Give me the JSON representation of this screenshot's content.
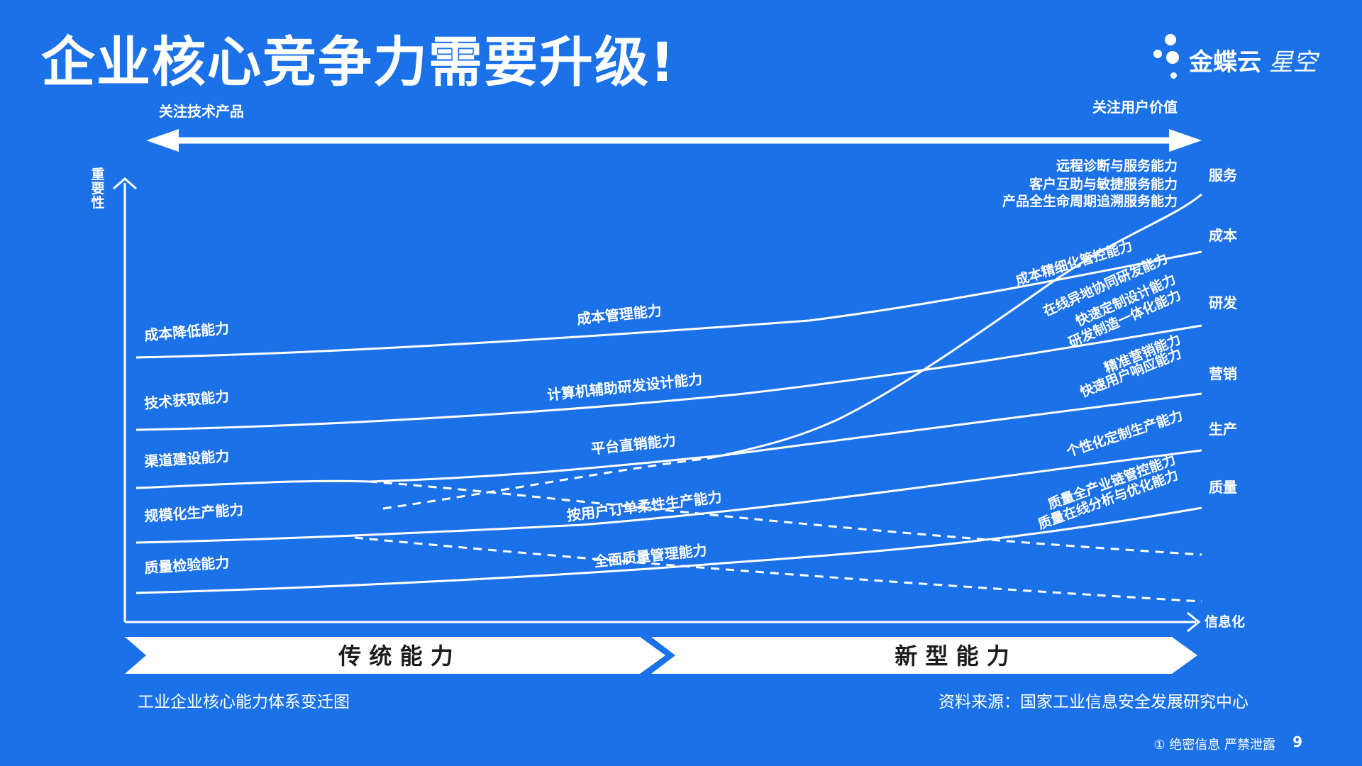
{
  "title": "企业核心竞争力需要升级!",
  "logo": {
    "brand": "金蝶云",
    "product": "星空"
  },
  "top_arrow": {
    "left_label": "关注技术产品",
    "right_label": "关注用户价值"
  },
  "axes": {
    "y_label": [
      "重",
      "要",
      "性"
    ],
    "x_label": "信息化"
  },
  "traditional_labels": [
    "成本降低能力",
    "技术获取能力",
    "渠道建设能力",
    "规模化生产能力",
    "质量检验能力"
  ],
  "middle_labels": [
    "成本管理能力",
    "计算机辅助研发设计能力",
    "平台直销能力",
    "按用户订单柔性生产能力",
    "全面质量管理能力"
  ],
  "new_labels": {
    "service": [
      "远程诊断与服务能力",
      "客户互助与敏捷服务能力",
      "产品全生命周期追溯服务能力"
    ],
    "cost": "成本精细化管控能力",
    "rnd": [
      "在线异地协同研发能力",
      "快速定制设计能力",
      "研发制造一体化能力"
    ],
    "marketing": [
      "精准营销能力",
      "快速用户响应能力"
    ],
    "production": "个性化定制生产能力",
    "quality": [
      "质量全产业链管控能力",
      "质量在线分析与优化能力"
    ]
  },
  "categories": [
    "服务",
    "成本",
    "研发",
    "营销",
    "生产",
    "质量"
  ],
  "bottom_banner": {
    "traditional": "传 统 能 力",
    "new": "新 型 能 力"
  },
  "footer": {
    "caption": "工业企业核心能力体系变迁图",
    "source": "资料来源：国家工业信息安全发展研究中心",
    "confidential": "① 绝密信息 严禁泄露",
    "page": "9"
  }
}
